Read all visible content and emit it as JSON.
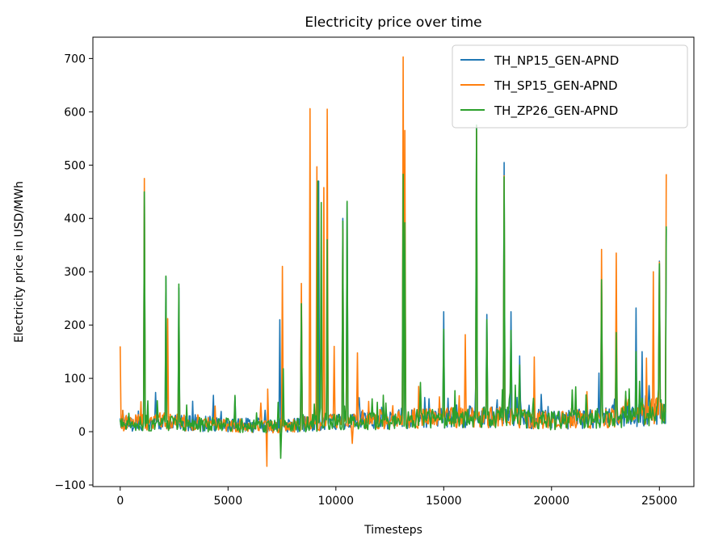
{
  "chart_data": {
    "type": "line",
    "title": "Electricity price over time",
    "xlabel": "Timesteps",
    "ylabel": "Electricity price in USD/MWh",
    "xlim": [
      -1267,
      26600
    ],
    "ylim": [
      -103,
      740
    ],
    "xticks": [
      0,
      5000,
      10000,
      15000,
      20000,
      25000
    ],
    "xtick_labels": [
      "0",
      "5000",
      "10000",
      "15000",
      "20000",
      "25000"
    ],
    "yticks": [
      -100,
      0,
      100,
      200,
      300,
      400,
      500,
      600,
      700
    ],
    "ytick_labels": [
      "−100",
      "0",
      "100",
      "200",
      "300",
      "400",
      "500",
      "600",
      "700"
    ],
    "grid": false,
    "legend_position": "top-right",
    "series": [
      {
        "name": "TH_NP15_GEN-APND",
        "color": "#1f77b4",
        "baseline": [
          [
            0,
            15
          ],
          [
            2000,
            18
          ],
          [
            4000,
            15
          ],
          [
            6000,
            12
          ],
          [
            7000,
            10
          ],
          [
            8000,
            12
          ],
          [
            10000,
            20
          ],
          [
            12000,
            22
          ],
          [
            14000,
            25
          ],
          [
            16000,
            28
          ],
          [
            18000,
            27
          ],
          [
            20000,
            22
          ],
          [
            22000,
            25
          ],
          [
            24000,
            30
          ],
          [
            25300,
            40
          ]
        ],
        "spikes": [
          [
            0,
            25
          ],
          [
            120,
            40
          ],
          [
            1100,
            450
          ],
          [
            2100,
            290
          ],
          [
            2700,
            270
          ],
          [
            5300,
            65
          ],
          [
            7400,
            210
          ],
          [
            7500,
            120
          ],
          [
            8400,
            240
          ],
          [
            9200,
            470
          ],
          [
            9600,
            350
          ],
          [
            10300,
            400
          ],
          [
            10500,
            430
          ],
          [
            13100,
            480
          ],
          [
            13200,
            390
          ],
          [
            15000,
            225
          ],
          [
            15600,
            50
          ],
          [
            16500,
            575
          ],
          [
            17000,
            220
          ],
          [
            17800,
            505
          ],
          [
            18100,
            225
          ],
          [
            18500,
            142
          ],
          [
            19500,
            70
          ],
          [
            22200,
            110
          ],
          [
            22300,
            280
          ],
          [
            23000,
            185
          ],
          [
            23900,
            232
          ],
          [
            24200,
            150
          ],
          [
            25000,
            320
          ],
          [
            25300,
            380
          ]
        ]
      },
      {
        "name": "TH_SP15_GEN-APND",
        "color": "#ff7f0e",
        "baseline": [
          [
            0,
            16
          ],
          [
            2000,
            20
          ],
          [
            4000,
            15
          ],
          [
            6000,
            10
          ],
          [
            7000,
            8
          ],
          [
            8000,
            12
          ],
          [
            10000,
            22
          ],
          [
            12000,
            24
          ],
          [
            14000,
            25
          ],
          [
            16000,
            28
          ],
          [
            18000,
            27
          ],
          [
            20000,
            22
          ],
          [
            22000,
            24
          ],
          [
            24000,
            32
          ],
          [
            25300,
            42
          ]
        ],
        "spikes": [
          [
            0,
            160
          ],
          [
            120,
            40
          ],
          [
            1100,
            475
          ],
          [
            2200,
            212
          ],
          [
            2700,
            222
          ],
          [
            6800,
            -65
          ],
          [
            6850,
            80
          ],
          [
            7500,
            310
          ],
          [
            8400,
            278
          ],
          [
            8800,
            606
          ],
          [
            9100,
            497
          ],
          [
            9450,
            458
          ],
          [
            9600,
            605
          ],
          [
            9900,
            160
          ],
          [
            10300,
            380
          ],
          [
            10500,
            265
          ],
          [
            11000,
            148
          ],
          [
            10750,
            -22
          ],
          [
            13100,
            703
          ],
          [
            13200,
            565
          ],
          [
            16000,
            182
          ],
          [
            16500,
            565
          ],
          [
            17000,
            175
          ],
          [
            17800,
            480
          ],
          [
            19200,
            140
          ],
          [
            22300,
            342
          ],
          [
            23000,
            335
          ],
          [
            24400,
            138
          ],
          [
            24700,
            300
          ],
          [
            25000,
            318
          ],
          [
            25300,
            483
          ]
        ]
      },
      {
        "name": "TH_ZP26_GEN-APND",
        "color": "#2ca02c",
        "baseline": [
          [
            0,
            14
          ],
          [
            2000,
            17
          ],
          [
            4000,
            14
          ],
          [
            6000,
            10
          ],
          [
            7000,
            9
          ],
          [
            8000,
            11
          ],
          [
            10000,
            19
          ],
          [
            12000,
            21
          ],
          [
            14000,
            24
          ],
          [
            16000,
            27
          ],
          [
            18000,
            26
          ],
          [
            20000,
            21
          ],
          [
            22000,
            24
          ],
          [
            24000,
            29
          ],
          [
            25300,
            38
          ]
        ],
        "spikes": [
          [
            0,
            22
          ],
          [
            1100,
            450
          ],
          [
            1700,
            58
          ],
          [
            2100,
            292
          ],
          [
            2700,
            277
          ],
          [
            5300,
            68
          ],
          [
            7300,
            55
          ],
          [
            7450,
            -50
          ],
          [
            7550,
            118
          ],
          [
            8400,
            240
          ],
          [
            9150,
            470
          ],
          [
            9300,
            430
          ],
          [
            9600,
            360
          ],
          [
            10300,
            395
          ],
          [
            10500,
            432
          ],
          [
            13100,
            483
          ],
          [
            13200,
            392
          ],
          [
            15000,
            192
          ],
          [
            16500,
            575
          ],
          [
            17000,
            210
          ],
          [
            17800,
            478
          ],
          [
            18100,
            190
          ],
          [
            18500,
            125
          ],
          [
            22300,
            285
          ],
          [
            23000,
            186
          ],
          [
            23900,
            150
          ],
          [
            25000,
            315
          ],
          [
            25300,
            385
          ]
        ]
      }
    ]
  }
}
